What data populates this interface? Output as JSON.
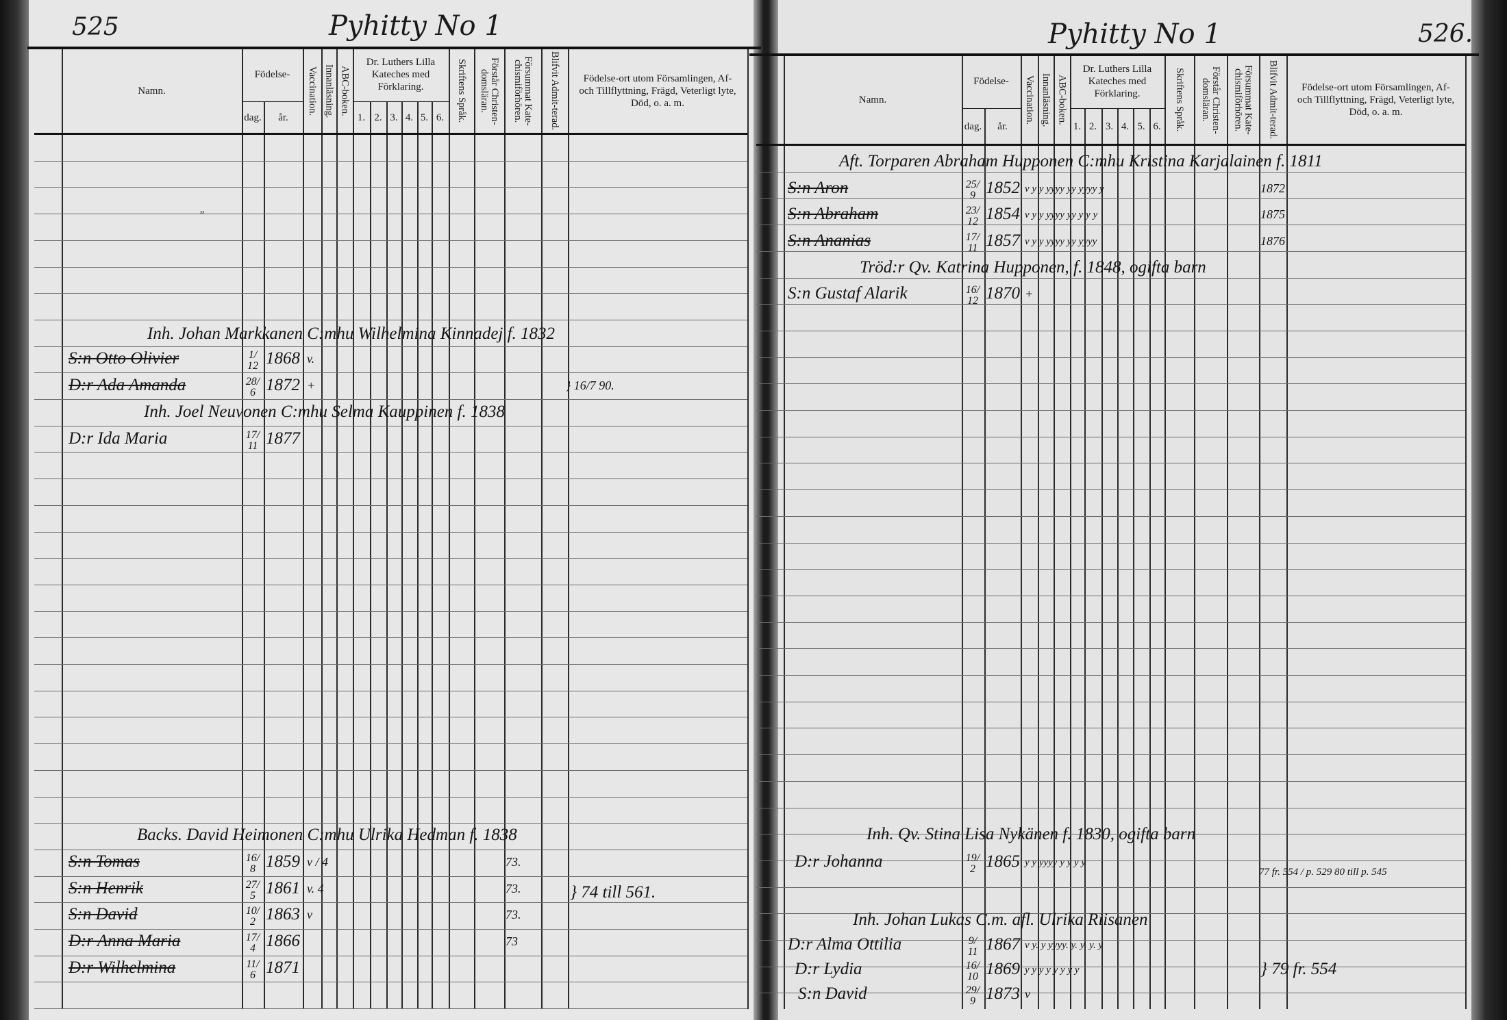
{
  "headers": {
    "namn": "Namn.",
    "fodelse": "Födelse-",
    "dag": "dag.",
    "ar": "år.",
    "vaccination": "Vaccination.",
    "innanlasning": "Innanläsning.",
    "abc": "ABC-boken.",
    "luther": "Dr. Luthers Lilla Kateches med Förklaring.",
    "nums": [
      "1.",
      "2.",
      "3.",
      "4.",
      "5.",
      "6."
    ],
    "skrift": "Skriftens Språk.",
    "forstar": "Förstår Christen-domsläran.",
    "forsummat": "Försummat Kate-chismiförhören.",
    "blifvit": "Blifvit Admit-terad.",
    "fodelseort": "Födelse-ort utom Församlingen, Af- och Tillflyttning, Frägd, Veterligt lyte, Död, o. a. m."
  },
  "left_page": {
    "page_number": "525",
    "village": "Pyhitty No 1",
    "stray_mark": "”",
    "households": [
      {
        "head": "Inh. Johan Markkanen C:mhu Wilhelmina Kinnadej f. 1832",
        "members": [
          {
            "name": "S:n Otto Olivier",
            "dag": "1/12",
            "ar": "1868",
            "marks": "v.",
            "struck": true
          },
          {
            "name": "D:r Ada Amanda",
            "dag": "28/6",
            "ar": "1872",
            "marks": "+",
            "note": "} 16/7 90.",
            "struck": true
          }
        ]
      },
      {
        "head": "Inh. Joel Neuvonen C:mhu Selma Kauppinen f. 1838",
        "members": [
          {
            "name": "D:r Ida Maria",
            "dag": "17/11",
            "ar": "1877"
          }
        ]
      },
      {
        "head": "Backs. David Heimonen C:mhu Ulrika Hedman f. 1838",
        "members": [
          {
            "name": "S:n Tomas",
            "dag": "16/8",
            "ar": "1859",
            "marks": "v / 4",
            "admit": "73.",
            "struck": true
          },
          {
            "name": "S:n Henrik",
            "dag": "27/5",
            "ar": "1861",
            "marks": "v. 4",
            "admit": "73.",
            "struck": true
          },
          {
            "name": "S:n David",
            "dag": "10/2",
            "ar": "1863",
            "marks": "v",
            "admit": "73.",
            "struck": true
          },
          {
            "name": "D:r Anna Maria",
            "dag": "17/4",
            "ar": "1866",
            "admit": "73",
            "struck": true
          },
          {
            "name": "D:r Wilhelmina",
            "dag": "11/6",
            "ar": "1871",
            "struck": true
          }
        ],
        "note": "} 74 till 561."
      }
    ]
  },
  "right_page": {
    "page_number": "526.",
    "village": "Pyhitty No 1",
    "households": [
      {
        "head": "Aft. Torparen Abraham Hupponen C:mhu Kristina Karjalainen f. 1811",
        "members": [
          {
            "name": "S:n Aron",
            "dag": "25/9",
            "ar": "1852",
            "marks": "v y y yyyy yy yyyy y",
            "admit": "1872",
            "struck": true
          },
          {
            "name": "S:n Abraham",
            "dag": "23/12",
            "ar": "1854",
            "marks": "v y y yyyy yy y y y",
            "admit": "1875",
            "struck": true
          },
          {
            "name": "S:n Ananias",
            "dag": "17/11",
            "ar": "1857",
            "marks": "v y y yyyy yy yyyy",
            "admit": "1876",
            "struck": true
          }
        ]
      },
      {
        "head": "Tröd:r Qv. Katrina Hupponen, f. 1848, ogifta barn",
        "members": [
          {
            "name": "S:n Gustaf Alarik",
            "dag": "16/12",
            "ar": "1870",
            "marks": "+"
          }
        ]
      },
      {
        "head": "Inh. Qv. Stina Lisa Nykänen f. 1830, ogifta barn",
        "members": [
          {
            "name": "D:r Johanna",
            "dag": "19/2",
            "ar": "1865",
            "marks": "y y yyyy y y y y",
            "note": "77 fr. 554 / p. 529 80 till p. 545"
          }
        ]
      },
      {
        "head": "Inh. Johan Lukas C.m. afl. Ulrika Riisanen",
        "members": [
          {
            "name": "D:r Alma Ottilia",
            "dag": "9/11",
            "ar": "1867",
            "marks": "v y. y yyyy. y. y. y. y"
          },
          {
            "name": "D:r Lydia",
            "dag": "16/10",
            "ar": "1869",
            "marks": "y y y y y y y y"
          },
          {
            "name": "S:n David",
            "dag": "29/9",
            "ar": "1873",
            "marks": "v"
          }
        ],
        "note": "} 79 fr. 554"
      }
    ]
  }
}
